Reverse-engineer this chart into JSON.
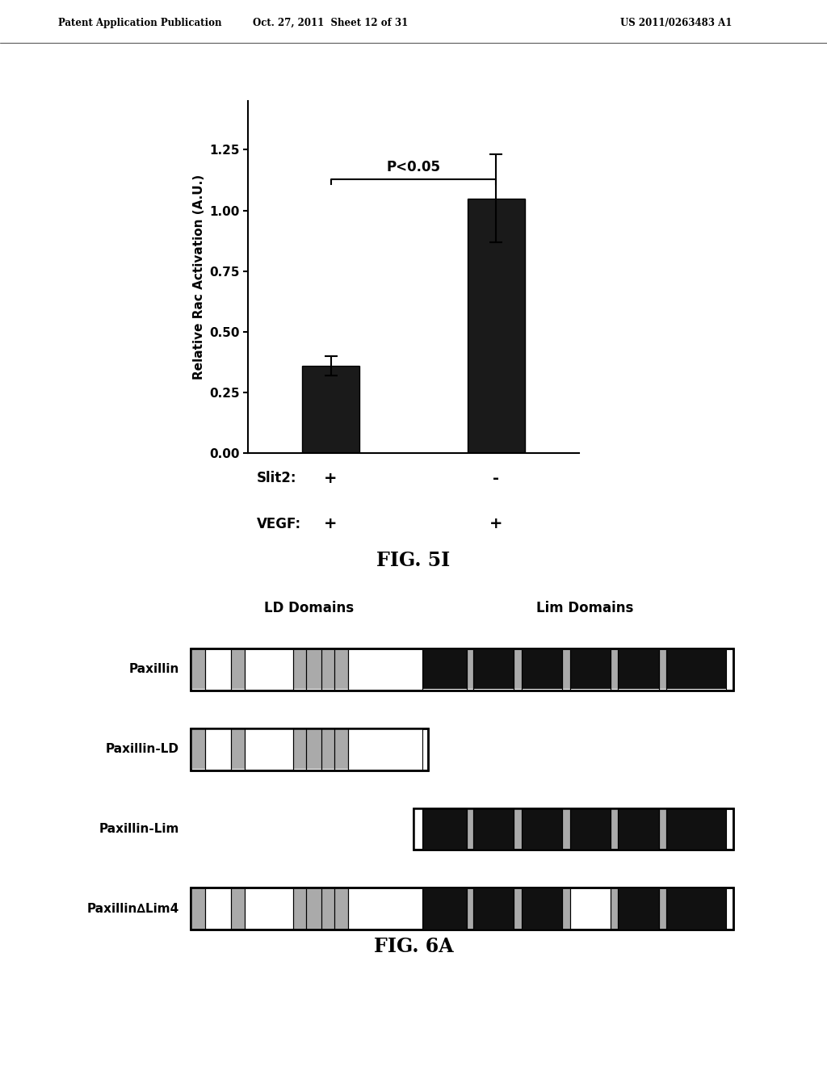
{
  "header_line1": "Patent Application Publication",
  "header_line2": "Oct. 27, 2011  Sheet 12 of 31",
  "header_line3": "US 2011/0263483 A1",
  "bar_values": [
    0.36,
    1.05
  ],
  "bar_errors": [
    0.04,
    0.18
  ],
  "bar_colors": [
    "#1a1a1a",
    "#1a1a1a"
  ],
  "bar_width": 0.35,
  "bar_positions": [
    0,
    1
  ],
  "ylabel": "Relative Rac Activation (A.U.)",
  "yticks": [
    0.0,
    0.25,
    0.5,
    0.75,
    1.0,
    1.25
  ],
  "ylim": [
    0,
    1.45
  ],
  "xlim": [
    -0.5,
    1.5
  ],
  "significance_text": "P<0.05",
  "slit2_labels": [
    "+",
    "-"
  ],
  "vegf_labels": [
    "+",
    "+"
  ],
  "fig5_caption": "FIG. 5I",
  "fig6_caption": "FIG. 6A",
  "ld_label": "LD Domains",
  "lim_label": "Lim Domains",
  "proteins": [
    "Paxillin",
    "Paxillin-LD",
    "Paxillin-Lim",
    "Paxillin∆Lim4"
  ]
}
